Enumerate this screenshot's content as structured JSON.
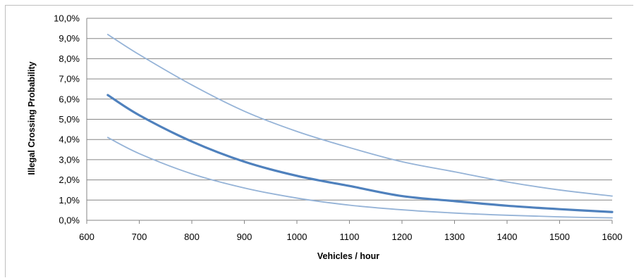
{
  "chart_data": {
    "type": "line",
    "title": "",
    "xlabel": "Vehicles / hour",
    "ylabel": "Illegal Crossing Probability",
    "xlim": [
      600,
      1600
    ],
    "ylim": [
      0,
      0.1
    ],
    "x_ticks": [
      600,
      700,
      800,
      900,
      1000,
      1100,
      1200,
      1300,
      1400,
      1500,
      1600
    ],
    "y_ticks": [
      0,
      0.01,
      0.02,
      0.03,
      0.04,
      0.05,
      0.06,
      0.07,
      0.08,
      0.09,
      0.1
    ],
    "y_tick_labels": [
      "0,0%",
      "1,0%",
      "2,0%",
      "3,0%",
      "4,0%",
      "5,0%",
      "6,0%",
      "7,0%",
      "8,0%",
      "9,0%",
      "10,0%"
    ],
    "grid": "horizontal",
    "legend": "none",
    "colors": {
      "main": "#4f81bd",
      "bounds": "#95b3d7",
      "grid": "#868686",
      "axis": "#868686"
    },
    "series": [
      {
        "role": "upper-bound",
        "x": [
          640,
          700,
          800,
          900,
          1000,
          1100,
          1200,
          1300,
          1400,
          1500,
          1600
        ],
        "y": [
          0.092,
          0.082,
          0.067,
          0.054,
          0.044,
          0.036,
          0.029,
          0.024,
          0.019,
          0.015,
          0.012
        ]
      },
      {
        "role": "estimate",
        "x": [
          640,
          700,
          800,
          900,
          1000,
          1100,
          1200,
          1300,
          1400,
          1500,
          1600
        ],
        "y": [
          0.062,
          0.052,
          0.039,
          0.029,
          0.022,
          0.017,
          0.012,
          0.0095,
          0.0072,
          0.0055,
          0.0041
        ]
      },
      {
        "role": "lower-bound",
        "x": [
          640,
          700,
          800,
          900,
          1000,
          1100,
          1200,
          1300,
          1400,
          1500,
          1600
        ],
        "y": [
          0.041,
          0.033,
          0.023,
          0.016,
          0.011,
          0.0075,
          0.0052,
          0.0036,
          0.0025,
          0.0017,
          0.0012
        ]
      }
    ]
  }
}
